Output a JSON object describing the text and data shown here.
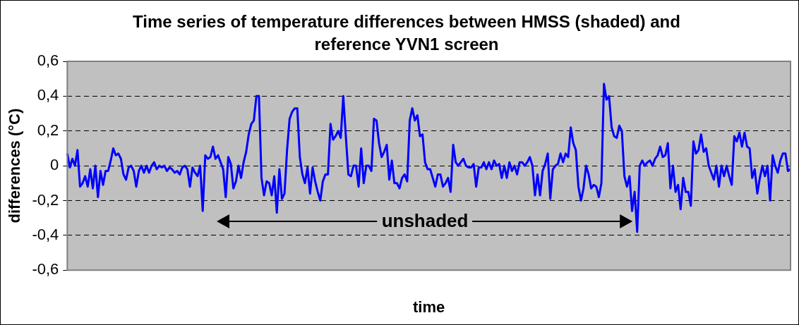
{
  "chart_data": {
    "type": "line",
    "title": "Time series of temperature differences between HMSS (shaded) and reference YVN1 screen",
    "xlabel": "time",
    "ylabel": "differences (°C)",
    "annotations": [
      "unshaded"
    ],
    "categories": [
      null,
      null,
      null,
      null,
      null,
      null,
      null,
      null,
      null,
      null,
      null,
      null,
      null,
      null,
      null,
      null,
      null,
      null,
      null,
      null,
      null,
      null,
      null,
      null,
      null,
      null,
      null,
      null,
      null,
      null,
      null,
      null,
      null,
      null,
      null,
      null,
      null,
      null,
      null,
      null,
      null,
      null,
      null,
      null,
      null,
      null,
      null,
      null,
      null,
      null,
      null,
      null,
      null,
      null,
      null,
      null,
      null,
      null,
      null,
      null,
      null,
      null,
      null,
      null,
      null,
      null,
      null,
      null,
      null,
      null,
      null,
      null,
      null,
      null,
      null,
      null,
      null,
      null,
      null,
      null,
      null,
      null,
      null,
      null,
      null,
      null,
      null,
      null,
      null,
      null,
      null,
      null,
      null,
      null,
      null,
      null,
      null,
      null,
      null,
      null,
      null,
      null,
      null,
      null,
      null,
      null,
      null,
      null,
      null,
      null,
      null,
      null,
      null,
      null,
      null,
      null,
      null,
      null,
      null,
      null,
      null,
      null,
      null,
      null,
      null,
      null,
      null,
      null,
      null,
      null,
      null,
      null,
      null,
      null,
      null,
      null,
      null,
      null,
      null,
      null,
      null,
      null,
      null,
      null,
      null,
      null,
      null,
      null,
      null,
      null,
      null,
      null,
      null,
      null,
      null,
      null,
      null,
      null,
      null,
      null,
      null,
      null,
      null,
      null,
      null,
      null,
      null,
      null,
      null,
      null,
      null,
      null,
      null,
      null,
      null,
      null,
      null,
      null,
      null,
      null,
      null,
      null,
      null,
      null,
      null,
      null,
      null,
      null,
      null,
      null,
      null,
      null,
      null,
      null,
      null,
      null,
      null,
      null,
      null,
      null,
      null,
      null,
      null,
      null,
      null,
      null,
      null,
      null,
      null,
      null,
      null,
      null,
      null,
      null,
      null,
      null,
      null,
      null,
      null,
      null,
      null,
      null,
      null,
      null,
      null,
      null,
      null,
      null,
      null,
      null,
      null,
      null,
      null,
      null,
      null,
      null,
      null,
      null,
      null,
      null,
      null,
      null,
      null,
      null,
      null,
      null,
      null,
      null,
      null,
      null,
      null,
      null,
      null,
      null,
      null,
      null,
      null,
      null,
      null,
      null,
      null,
      null,
      null,
      null,
      null,
      null,
      null,
      null,
      null,
      null,
      null,
      null,
      null,
      null,
      null,
      null,
      null,
      null,
      null,
      null,
      null,
      null,
      null,
      null
    ],
    "series": [
      {
        "color": "#0000ff",
        "values": [
          0.07,
          -0.01,
          0.04,
          0.0,
          0.09,
          -0.12,
          -0.1,
          -0.06,
          -0.12,
          -0.02,
          -0.13,
          0.0,
          -0.18,
          -0.03,
          -0.11,
          -0.03,
          -0.03,
          0.03,
          0.1,
          0.06,
          0.07,
          0.04,
          -0.05,
          -0.08,
          -0.01,
          0.0,
          -0.03,
          -0.12,
          -0.03,
          0.0,
          -0.04,
          0.0,
          -0.04,
          0.0,
          0.02,
          -0.02,
          0.0,
          -0.01,
          0.0,
          -0.03,
          -0.01,
          -0.02,
          -0.04,
          -0.03,
          -0.05,
          -0.01,
          0.0,
          -0.02,
          -0.12,
          -0.01,
          -0.04,
          -0.06,
          0.0,
          -0.26,
          0.06,
          0.04,
          0.05,
          0.11,
          0.04,
          0.06,
          0.02,
          -0.02,
          -0.18,
          0.05,
          0.01,
          -0.13,
          -0.09,
          0.0,
          -0.07,
          0.02,
          0.08,
          0.18,
          0.24,
          0.26,
          0.4,
          0.4,
          -0.07,
          -0.17,
          -0.09,
          -0.1,
          -0.17,
          -0.06,
          -0.27,
          -0.02,
          -0.19,
          -0.16,
          0.09,
          0.27,
          0.31,
          0.33,
          0.33,
          0.05,
          -0.05,
          -0.1,
          -0.01,
          -0.16,
          -0.01,
          -0.09,
          -0.15,
          -0.2,
          -0.09,
          -0.05,
          -0.05,
          0.24,
          0.15,
          0.17,
          0.2,
          0.16,
          0.4,
          0.17,
          -0.05,
          -0.06,
          0.0,
          0.0,
          -0.12,
          0.1,
          -0.1,
          0.0,
          0.0,
          -0.03,
          0.27,
          0.26,
          0.13,
          0.05,
          0.08,
          0.12,
          -0.08,
          0.03,
          -0.1,
          -0.1,
          -0.13,
          -0.07,
          -0.05,
          -0.09,
          0.26,
          0.33,
          0.26,
          0.29,
          0.17,
          0.18,
          0.02,
          -0.02,
          -0.02,
          -0.07,
          -0.12,
          -0.05,
          -0.05,
          -0.12,
          -0.1,
          -0.07,
          -0.15,
          0.12,
          0.02,
          0.0,
          0.02,
          0.04,
          0.0,
          -0.01,
          -0.01,
          0.01,
          -0.12,
          -0.01,
          -0.01,
          0.02,
          -0.02,
          0.02,
          -0.02,
          0.03,
          0.0,
          0.01,
          -0.07,
          0.0,
          -0.07,
          0.02,
          -0.03,
          0.0,
          -0.05,
          0.02,
          0.02,
          0.0,
          0.02,
          0.05,
          0.0,
          -0.17,
          -0.05,
          -0.17,
          -0.03,
          0.01,
          0.07,
          -0.19,
          -0.02,
          0.0,
          0.01,
          0.07,
          0.02,
          0.07,
          0.05,
          0.22,
          0.13,
          0.09,
          -0.12,
          -0.2,
          -0.13,
          0.0,
          -0.05,
          -0.13,
          -0.11,
          -0.12,
          -0.18,
          -0.1,
          0.47,
          0.38,
          0.4,
          0.22,
          0.17,
          0.16,
          0.23,
          0.2,
          -0.06,
          -0.12,
          -0.06,
          -0.26,
          -0.15,
          -0.38,
          0.0,
          0.03,
          0.0,
          0.02,
          0.03,
          0.0,
          0.04,
          0.06,
          0.11,
          0.05,
          0.06,
          0.13,
          -0.13,
          0.0,
          -0.15,
          -0.11,
          -0.25,
          -0.07,
          -0.15,
          -0.15,
          -0.23,
          0.14,
          0.07,
          0.09,
          0.18,
          0.08,
          0.1,
          0.0,
          -0.04,
          -0.08,
          0.0,
          -0.12,
          0.0,
          -0.06,
          0.0,
          -0.06,
          -0.11,
          0.17,
          0.14,
          0.19,
          0.11,
          0.19,
          0.11,
          0.1,
          -0.07,
          -0.02,
          -0.16,
          -0.07,
          0.0,
          -0.06,
          0.0,
          -0.2,
          0.06,
          0.0,
          -0.04,
          0.03,
          0.07,
          0.07,
          -0.03,
          -0.02
        ]
      }
    ],
    "ylim": [
      -0.6,
      0.6
    ],
    "yticks": [
      {
        "value": -0.6,
        "label": "-0,6"
      },
      {
        "value": -0.4,
        "label": "-0,4"
      },
      {
        "value": -0.2,
        "label": "-0,2"
      },
      {
        "value": 0,
        "label": "0"
      },
      {
        "value": 0.2,
        "label": "0,2"
      },
      {
        "value": 0.4,
        "label": "0,4"
      },
      {
        "value": 0.6,
        "label": "0,6"
      }
    ],
    "grid": "y",
    "line_style": "solid",
    "marker": "none",
    "legend": false
  }
}
